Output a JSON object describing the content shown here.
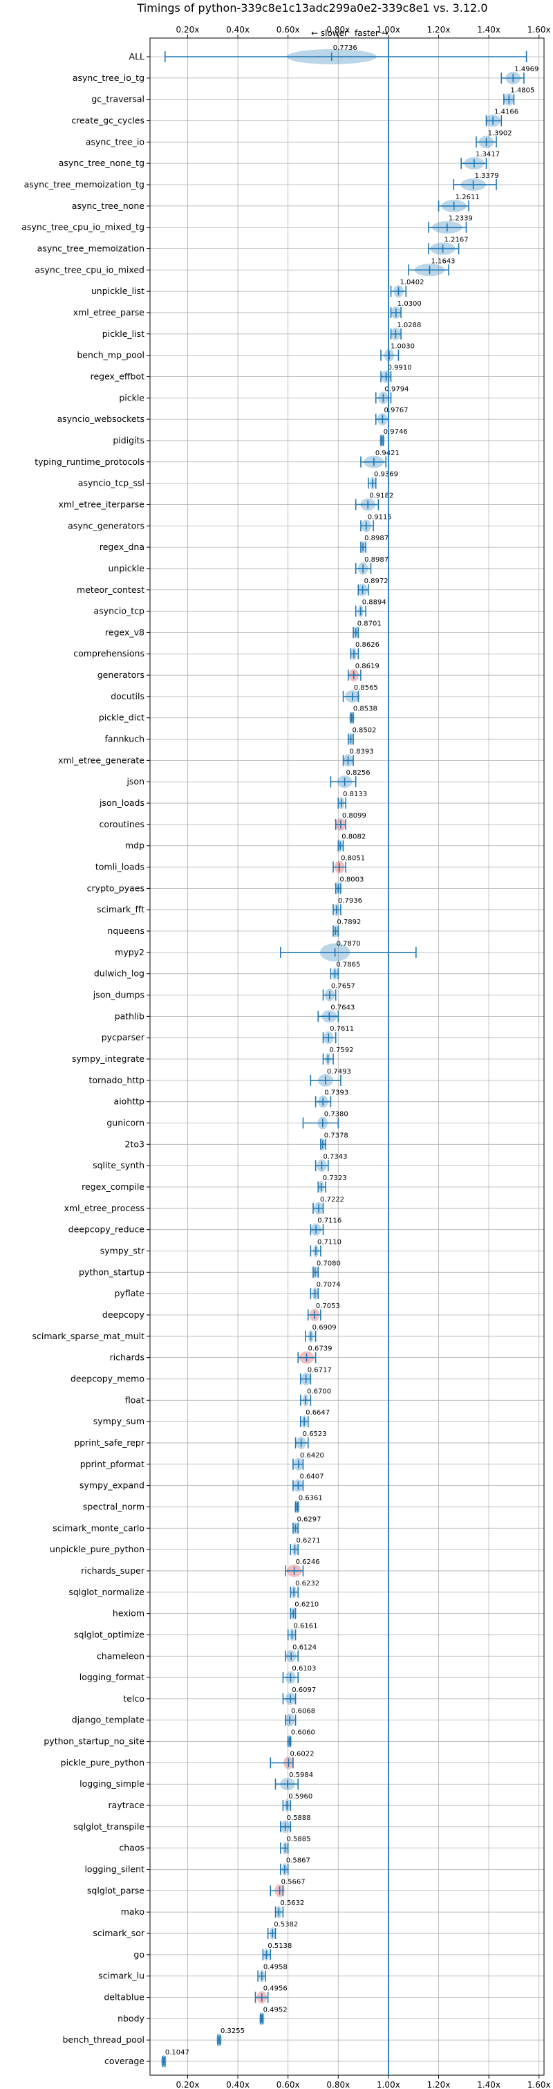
{
  "chart_data": {
    "type": "violin",
    "title": "Timings of python-339c8e1c13adc299a0e2-339c8e1 vs. 3.12.0",
    "direction_left": "← slower",
    "direction_right": "faster →",
    "xlim": [
      0.05,
      1.62
    ],
    "xticks": [
      0.2,
      0.4,
      0.6,
      0.8,
      1.0,
      1.2,
      1.4,
      1.6
    ],
    "xtick_labels": [
      "0.20x",
      "0.40x",
      "0.60x",
      "0.80x",
      "1.00x",
      "1.20x",
      "1.40x",
      "1.60x"
    ],
    "reference_line": 1.0,
    "grid": true,
    "colors": {
      "violin": "#1f77b4",
      "violin_insignificant": "#d62728",
      "reference": "#1f77b4"
    },
    "benchmarks": [
      {
        "name": "ALL",
        "value": 0.7736,
        "min": 0.11,
        "max": 1.55,
        "spread": 0.18
      },
      {
        "name": "async_tree_io_tg",
        "value": 1.4969,
        "min": 1.45,
        "max": 1.54,
        "spread": 0.03
      },
      {
        "name": "gc_traversal",
        "value": 1.4805,
        "min": 1.46,
        "max": 1.5,
        "spread": 0.02
      },
      {
        "name": "create_gc_cycles",
        "value": 1.4166,
        "min": 1.39,
        "max": 1.45,
        "spread": 0.03
      },
      {
        "name": "async_tree_io",
        "value": 1.3902,
        "min": 1.35,
        "max": 1.43,
        "spread": 0.03
      },
      {
        "name": "async_tree_none_tg",
        "value": 1.3417,
        "min": 1.29,
        "max": 1.39,
        "spread": 0.04
      },
      {
        "name": "async_tree_memoization_tg",
        "value": 1.3379,
        "min": 1.26,
        "max": 1.43,
        "spread": 0.05
      },
      {
        "name": "async_tree_none",
        "value": 1.2611,
        "min": 1.2,
        "max": 1.32,
        "spread": 0.05
      },
      {
        "name": "async_tree_cpu_io_mixed_tg",
        "value": 1.2339,
        "min": 1.16,
        "max": 1.31,
        "spread": 0.06
      },
      {
        "name": "async_tree_memoization",
        "value": 1.2167,
        "min": 1.16,
        "max": 1.28,
        "spread": 0.05
      },
      {
        "name": "async_tree_cpu_io_mixed",
        "value": 1.1643,
        "min": 1.08,
        "max": 1.24,
        "spread": 0.06
      },
      {
        "name": "unpickle_list",
        "value": 1.0402,
        "min": 1.01,
        "max": 1.07,
        "spread": 0.02
      },
      {
        "name": "xml_etree_parse",
        "value": 1.03,
        "min": 1.01,
        "max": 1.05,
        "spread": 0.02
      },
      {
        "name": "pickle_list",
        "value": 1.0288,
        "min": 1.01,
        "max": 1.05,
        "spread": 0.02
      },
      {
        "name": "bench_mp_pool",
        "value": 1.003,
        "min": 0.97,
        "max": 1.04,
        "spread": 0.02
      },
      {
        "name": "regex_effbot",
        "value": 0.991,
        "min": 0.97,
        "max": 1.01,
        "spread": 0.02
      },
      {
        "name": "pickle",
        "value": 0.9794,
        "min": 0.95,
        "max": 1.01,
        "spread": 0.02
      },
      {
        "name": "asyncio_websockets",
        "value": 0.9767,
        "min": 0.95,
        "max": 1.0,
        "spread": 0.02
      },
      {
        "name": "pidigits",
        "value": 0.9746,
        "min": 0.97,
        "max": 0.98,
        "spread": 0.01
      },
      {
        "name": "typing_runtime_protocols",
        "value": 0.9421,
        "min": 0.89,
        "max": 0.99,
        "spread": 0.04
      },
      {
        "name": "asyncio_tcp_ssl",
        "value": 0.9369,
        "min": 0.92,
        "max": 0.95,
        "spread": 0.01
      },
      {
        "name": "xml_etree_iterparse",
        "value": 0.9182,
        "min": 0.87,
        "max": 0.96,
        "spread": 0.03
      },
      {
        "name": "async_generators",
        "value": 0.9115,
        "min": 0.89,
        "max": 0.94,
        "spread": 0.02
      },
      {
        "name": "regex_dna",
        "value": 0.8987,
        "min": 0.89,
        "max": 0.91,
        "spread": 0.01
      },
      {
        "name": "unpickle",
        "value": 0.8987,
        "min": 0.87,
        "max": 0.93,
        "spread": 0.02
      },
      {
        "name": "meteor_contest",
        "value": 0.8972,
        "min": 0.88,
        "max": 0.92,
        "spread": 0.02
      },
      {
        "name": "asyncio_tcp",
        "value": 0.8894,
        "min": 0.87,
        "max": 0.91,
        "spread": 0.01
      },
      {
        "name": "regex_v8",
        "value": 0.8701,
        "min": 0.86,
        "max": 0.88,
        "spread": 0.01
      },
      {
        "name": "comprehensions",
        "value": 0.8626,
        "min": 0.85,
        "max": 0.88,
        "spread": 0.01
      },
      {
        "name": "generators",
        "value": 0.8619,
        "min": 0.84,
        "max": 0.89,
        "spread": 0.02,
        "insignificant": true
      },
      {
        "name": "docutils",
        "value": 0.8565,
        "min": 0.82,
        "max": 0.88,
        "spread": 0.03
      },
      {
        "name": "pickle_dict",
        "value": 0.8538,
        "min": 0.85,
        "max": 0.86,
        "spread": 0.01
      },
      {
        "name": "fannkuch",
        "value": 0.8502,
        "min": 0.84,
        "max": 0.86,
        "spread": 0.01
      },
      {
        "name": "xml_etree_generate",
        "value": 0.8393,
        "min": 0.82,
        "max": 0.86,
        "spread": 0.02
      },
      {
        "name": "json",
        "value": 0.8256,
        "min": 0.77,
        "max": 0.87,
        "spread": 0.03
      },
      {
        "name": "json_loads",
        "value": 0.8133,
        "min": 0.8,
        "max": 0.83,
        "spread": 0.01
      },
      {
        "name": "coroutines",
        "value": 0.8099,
        "min": 0.79,
        "max": 0.83,
        "spread": 0.02,
        "insignificant": true
      },
      {
        "name": "mdp",
        "value": 0.8082,
        "min": 0.8,
        "max": 0.82,
        "spread": 0.01
      },
      {
        "name": "tomli_loads",
        "value": 0.8051,
        "min": 0.78,
        "max": 0.83,
        "spread": 0.02,
        "insignificant": true
      },
      {
        "name": "crypto_pyaes",
        "value": 0.8003,
        "min": 0.79,
        "max": 0.81,
        "spread": 0.01
      },
      {
        "name": "scimark_fft",
        "value": 0.7936,
        "min": 0.78,
        "max": 0.81,
        "spread": 0.01
      },
      {
        "name": "nqueens",
        "value": 0.7892,
        "min": 0.78,
        "max": 0.8,
        "spread": 0.01
      },
      {
        "name": "mypy2",
        "value": 0.787,
        "min": 0.57,
        "max": 1.11,
        "spread": 0.06
      },
      {
        "name": "dulwich_log",
        "value": 0.7865,
        "min": 0.77,
        "max": 0.8,
        "spread": 0.01
      },
      {
        "name": "json_dumps",
        "value": 0.7657,
        "min": 0.74,
        "max": 0.79,
        "spread": 0.02
      },
      {
        "name": "pathlib",
        "value": 0.7643,
        "min": 0.72,
        "max": 0.8,
        "spread": 0.03
      },
      {
        "name": "pycparser",
        "value": 0.7611,
        "min": 0.74,
        "max": 0.79,
        "spread": 0.02
      },
      {
        "name": "sympy_integrate",
        "value": 0.7592,
        "min": 0.74,
        "max": 0.78,
        "spread": 0.01
      },
      {
        "name": "tornado_http",
        "value": 0.7493,
        "min": 0.69,
        "max": 0.81,
        "spread": 0.03
      },
      {
        "name": "aiohttp",
        "value": 0.7393,
        "min": 0.71,
        "max": 0.77,
        "spread": 0.02
      },
      {
        "name": "gunicorn",
        "value": 0.738,
        "min": 0.66,
        "max": 0.8,
        "spread": 0.02
      },
      {
        "name": "2to3",
        "value": 0.7378,
        "min": 0.73,
        "max": 0.75,
        "spread": 0.01
      },
      {
        "name": "sqlite_synth",
        "value": 0.7343,
        "min": 0.71,
        "max": 0.76,
        "spread": 0.02
      },
      {
        "name": "regex_compile",
        "value": 0.7323,
        "min": 0.72,
        "max": 0.75,
        "spread": 0.01
      },
      {
        "name": "xml_etree_process",
        "value": 0.7222,
        "min": 0.7,
        "max": 0.74,
        "spread": 0.02
      },
      {
        "name": "deepcopy_reduce",
        "value": 0.7116,
        "min": 0.69,
        "max": 0.74,
        "spread": 0.02
      },
      {
        "name": "sympy_str",
        "value": 0.711,
        "min": 0.69,
        "max": 0.73,
        "spread": 0.01
      },
      {
        "name": "python_startup",
        "value": 0.708,
        "min": 0.7,
        "max": 0.72,
        "spread": 0.01
      },
      {
        "name": "pyflate",
        "value": 0.7074,
        "min": 0.69,
        "max": 0.72,
        "spread": 0.01
      },
      {
        "name": "deepcopy",
        "value": 0.7053,
        "min": 0.68,
        "max": 0.73,
        "spread": 0.02,
        "insignificant": true
      },
      {
        "name": "scimark_sparse_mat_mult",
        "value": 0.6909,
        "min": 0.67,
        "max": 0.71,
        "spread": 0.01
      },
      {
        "name": "richards",
        "value": 0.6739,
        "min": 0.64,
        "max": 0.71,
        "spread": 0.03,
        "insignificant": true
      },
      {
        "name": "deepcopy_memo",
        "value": 0.6717,
        "min": 0.65,
        "max": 0.69,
        "spread": 0.02
      },
      {
        "name": "float",
        "value": 0.67,
        "min": 0.65,
        "max": 0.69,
        "spread": 0.01
      },
      {
        "name": "sympy_sum",
        "value": 0.6647,
        "min": 0.65,
        "max": 0.68,
        "spread": 0.01
      },
      {
        "name": "pprint_safe_repr",
        "value": 0.6523,
        "min": 0.63,
        "max": 0.68,
        "spread": 0.02
      },
      {
        "name": "pprint_pformat",
        "value": 0.642,
        "min": 0.62,
        "max": 0.66,
        "spread": 0.02
      },
      {
        "name": "sympy_expand",
        "value": 0.6407,
        "min": 0.62,
        "max": 0.66,
        "spread": 0.02
      },
      {
        "name": "spectral_norm",
        "value": 0.6361,
        "min": 0.63,
        "max": 0.64,
        "spread": 0.01
      },
      {
        "name": "scimark_monte_carlo",
        "value": 0.6297,
        "min": 0.62,
        "max": 0.64,
        "spread": 0.01
      },
      {
        "name": "unpickle_pure_python",
        "value": 0.6271,
        "min": 0.61,
        "max": 0.64,
        "spread": 0.01
      },
      {
        "name": "richards_super",
        "value": 0.6246,
        "min": 0.59,
        "max": 0.66,
        "spread": 0.03,
        "insignificant": true
      },
      {
        "name": "sqlglot_normalize",
        "value": 0.6232,
        "min": 0.61,
        "max": 0.64,
        "spread": 0.01
      },
      {
        "name": "hexiom",
        "value": 0.621,
        "min": 0.61,
        "max": 0.63,
        "spread": 0.01
      },
      {
        "name": "sqlglot_optimize",
        "value": 0.6161,
        "min": 0.6,
        "max": 0.63,
        "spread": 0.01
      },
      {
        "name": "chameleon",
        "value": 0.6124,
        "min": 0.59,
        "max": 0.64,
        "spread": 0.02
      },
      {
        "name": "logging_format",
        "value": 0.6103,
        "min": 0.58,
        "max": 0.64,
        "spread": 0.02
      },
      {
        "name": "telco",
        "value": 0.6097,
        "min": 0.58,
        "max": 0.63,
        "spread": 0.02
      },
      {
        "name": "django_template",
        "value": 0.6068,
        "min": 0.59,
        "max": 0.63,
        "spread": 0.02
      },
      {
        "name": "python_startup_no_site",
        "value": 0.606,
        "min": 0.6,
        "max": 0.61,
        "spread": 0.01
      },
      {
        "name": "pickle_pure_python",
        "value": 0.6022,
        "min": 0.53,
        "max": 0.62,
        "spread": 0.02,
        "insignificant": true
      },
      {
        "name": "logging_simple",
        "value": 0.5984,
        "min": 0.55,
        "max": 0.64,
        "spread": 0.03
      },
      {
        "name": "raytrace",
        "value": 0.596,
        "min": 0.58,
        "max": 0.61,
        "spread": 0.01
      },
      {
        "name": "sqlglot_transpile",
        "value": 0.5888,
        "min": 0.57,
        "max": 0.61,
        "spread": 0.02
      },
      {
        "name": "chaos",
        "value": 0.5885,
        "min": 0.57,
        "max": 0.6,
        "spread": 0.01
      },
      {
        "name": "logging_silent",
        "value": 0.5867,
        "min": 0.57,
        "max": 0.6,
        "spread": 0.01
      },
      {
        "name": "sqlglot_parse",
        "value": 0.5667,
        "min": 0.53,
        "max": 0.58,
        "spread": 0.02,
        "insignificant": true
      },
      {
        "name": "mako",
        "value": 0.5632,
        "min": 0.55,
        "max": 0.58,
        "spread": 0.01
      },
      {
        "name": "scimark_sor",
        "value": 0.5382,
        "min": 0.52,
        "max": 0.55,
        "spread": 0.01
      },
      {
        "name": "go",
        "value": 0.5138,
        "min": 0.5,
        "max": 0.53,
        "spread": 0.01
      },
      {
        "name": "scimark_lu",
        "value": 0.4958,
        "min": 0.48,
        "max": 0.51,
        "spread": 0.01
      },
      {
        "name": "deltablue",
        "value": 0.4956,
        "min": 0.47,
        "max": 0.52,
        "spread": 0.02,
        "insignificant": true
      },
      {
        "name": "nbody",
        "value": 0.4952,
        "min": 0.49,
        "max": 0.5,
        "spread": 0.01
      },
      {
        "name": "bench_thread_pool",
        "value": 0.3255,
        "min": 0.32,
        "max": 0.33,
        "spread": 0.005
      },
      {
        "name": "coverage",
        "value": 0.1047,
        "min": 0.1,
        "max": 0.11,
        "spread": 0.005
      }
    ]
  }
}
